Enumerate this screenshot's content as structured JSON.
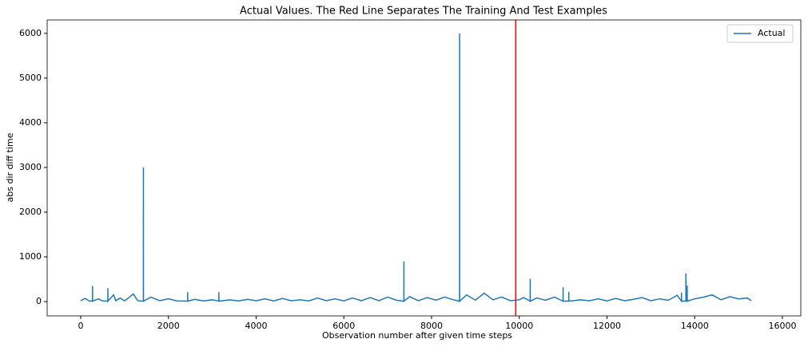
{
  "chart_data": {
    "type": "line",
    "title": "Actual Values. The Red Line Separates The Training And Test Examples",
    "xlabel": "Observation number after given time steps",
    "ylabel": "abs dir diff time",
    "x": [
      0,
      100,
      200,
      269,
      270,
      271,
      400,
      500,
      619,
      620,
      621,
      750,
      800,
      900,
      1000,
      1100,
      1200,
      1300,
      1429,
      1430,
      1431,
      1600,
      1800,
      2000,
      2200,
      2439,
      2440,
      2441,
      2600,
      2800,
      3000,
      3149,
      3150,
      3151,
      3400,
      3600,
      3800,
      4000,
      4200,
      4400,
      4600,
      4800,
      5000,
      5200,
      5400,
      5600,
      5800,
      6000,
      6200,
      6400,
      6600,
      6800,
      7000,
      7200,
      7369,
      7370,
      7371,
      7500,
      7700,
      7900,
      8100,
      8300,
      8500,
      8639,
      8640,
      8641,
      8800,
      9000,
      9200,
      9400,
      9600,
      9800,
      10000,
      10100,
      10249,
      10250,
      10251,
      10400,
      10600,
      10800,
      10999,
      11000,
      11001,
      11129,
      11130,
      11131,
      11400,
      11600,
      11800,
      12000,
      12200,
      12400,
      12600,
      12800,
      13000,
      13200,
      13400,
      13600,
      13699,
      13700,
      13701,
      13799,
      13800,
      13801,
      13829,
      13830,
      13831,
      14000,
      14200,
      14400,
      14600,
      14800,
      15000,
      15200,
      15290
    ],
    "series": [
      {
        "name": "Actual",
        "color": "#1f77b4",
        "values": [
          20,
          70,
          10,
          10,
          350,
          10,
          60,
          15,
          10,
          300,
          10,
          150,
          20,
          80,
          15,
          90,
          170,
          20,
          10,
          3000,
          10,
          100,
          20,
          60,
          15,
          10,
          210,
          10,
          50,
          15,
          40,
          10,
          210,
          10,
          40,
          15,
          50,
          20,
          60,
          15,
          70,
          20,
          40,
          15,
          80,
          20,
          60,
          15,
          80,
          20,
          90,
          20,
          100,
          30,
          10,
          900,
          10,
          110,
          20,
          90,
          30,
          100,
          40,
          10,
          6000,
          10,
          150,
          30,
          190,
          40,
          100,
          20,
          40,
          90,
          10,
          510,
          10,
          80,
          30,
          100,
          10,
          320,
          10,
          10,
          220,
          10,
          40,
          20,
          60,
          15,
          70,
          20,
          50,
          90,
          20,
          60,
          30,
          140,
          10,
          200,
          10,
          10,
          630,
          10,
          10,
          360,
          10,
          60,
          100,
          150,
          40,
          110,
          60,
          80,
          20
        ]
      }
    ],
    "vline": {
      "x": 9920,
      "color": "#ff0000"
    },
    "xlim": [
      -765,
      16420
    ],
    "ylim": [
      -320,
      6300
    ],
    "xticks": [
      0,
      2000,
      4000,
      6000,
      8000,
      10000,
      12000,
      14000,
      16000
    ],
    "yticks": [
      0,
      1000,
      2000,
      3000,
      4000,
      5000,
      6000
    ],
    "legend": "upper right"
  }
}
